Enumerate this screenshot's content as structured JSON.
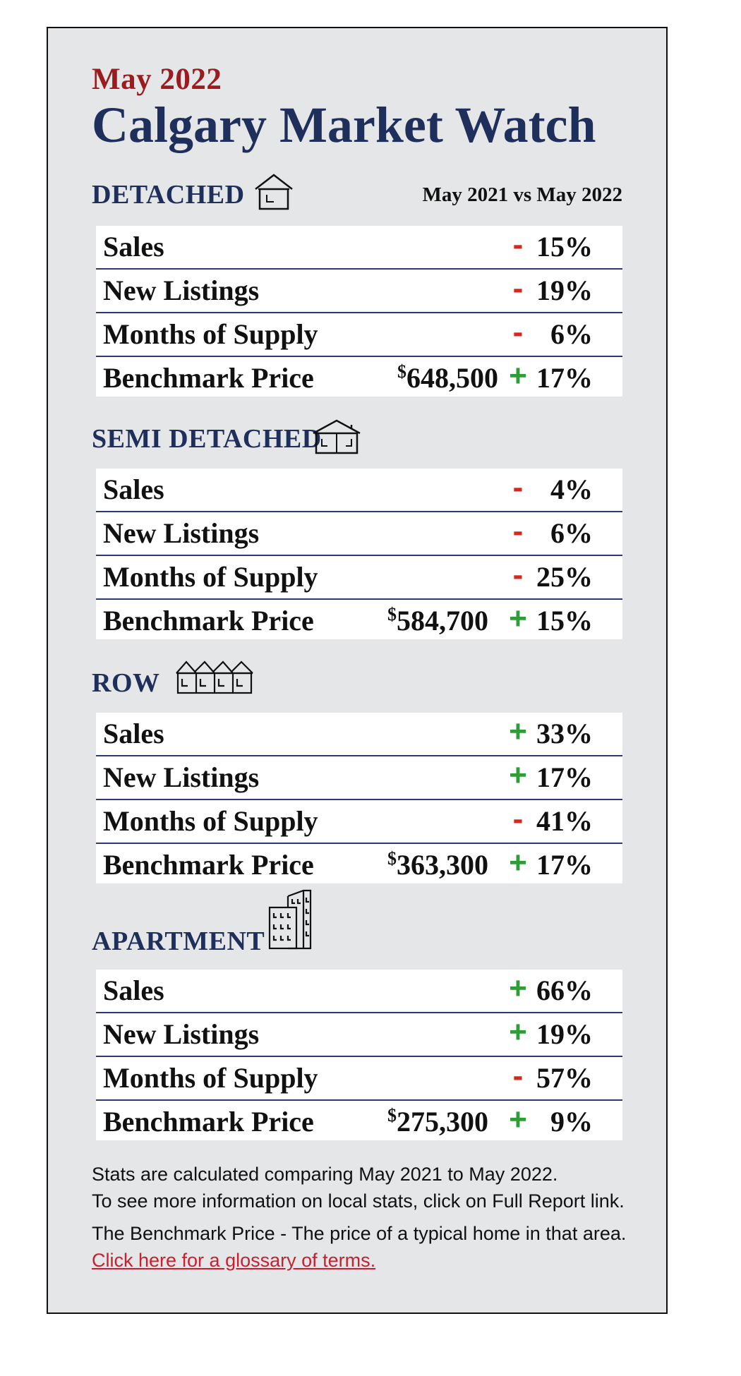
{
  "header": {
    "month": "May 2022",
    "title": "Calgary Market Watch",
    "comparison_label": "May 2021 vs May 2022"
  },
  "colors": {
    "title_navy": "#1f2f5c",
    "month_red": "#9b1b1f",
    "negative_red": "#d9261c",
    "positive_green": "#2e9d35",
    "card_background": "#e5e6e8"
  },
  "sections": [
    {
      "name": "DETACHED",
      "icon": "detached-house-icon",
      "rows": [
        {
          "label": "Sales",
          "price": "",
          "sign": "-",
          "pct": "15%"
        },
        {
          "label": "New Listings",
          "price": "",
          "sign": "-",
          "pct": "19%"
        },
        {
          "label": "Months of Supply",
          "price": "",
          "sign": "-",
          "pct": "6%"
        },
        {
          "label": "Benchmark Price",
          "price_symbol": "$",
          "price": "648,500",
          "sign": "+",
          "pct": "17%"
        }
      ]
    },
    {
      "name": "SEMI DETACHED",
      "icon": "semi-detached-house-icon",
      "rows": [
        {
          "label": "Sales",
          "price": "",
          "sign": "-",
          "pct": "4%"
        },
        {
          "label": "New Listings",
          "price": "",
          "sign": "-",
          "pct": "6%"
        },
        {
          "label": "Months of Supply",
          "price": "",
          "sign": "-",
          "pct": "25%"
        },
        {
          "label": "Benchmark Price",
          "price_symbol": "$",
          "price": "584,700",
          "sign": "+",
          "pct": "15%"
        }
      ]
    },
    {
      "name": "ROW",
      "icon": "row-houses-icon",
      "rows": [
        {
          "label": "Sales",
          "price": "",
          "sign": "+",
          "pct": "33%"
        },
        {
          "label": "New Listings",
          "price": "",
          "sign": "+",
          "pct": "17%"
        },
        {
          "label": "Months of Supply",
          "price": "",
          "sign": "-",
          "pct": "41%"
        },
        {
          "label": "Benchmark Price",
          "price_symbol": "$",
          "price": "363,300",
          "sign": "+",
          "pct": "17%"
        }
      ]
    },
    {
      "name": "APARTMENT",
      "icon": "apartment-building-icon",
      "rows": [
        {
          "label": "Sales",
          "price": "",
          "sign": "+",
          "pct": "66%"
        },
        {
          "label": "New Listings",
          "price": "",
          "sign": "+",
          "pct": "19%"
        },
        {
          "label": "Months of Supply",
          "price": "",
          "sign": "-",
          "pct": "57%"
        },
        {
          "label": "Benchmark Price",
          "price_symbol": "$",
          "price": "275,300",
          "sign": "+",
          "pct": "9%"
        }
      ]
    }
  ],
  "notes": {
    "line1": "Stats are calculated comparing May 2021 to May 2022.",
    "line2": "To see more information on local stats, click on Full Report link.",
    "line3": "The Benchmark Price - The price of a typical home in that area.",
    "glossary_link": "Click here for a glossary of terms."
  }
}
